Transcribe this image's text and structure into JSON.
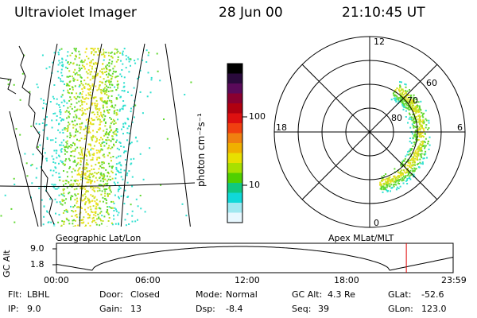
{
  "header": {
    "instrument": "Ultraviolet Imager",
    "date": "28 Jun 00",
    "time": "21:10:45 UT"
  },
  "colorbar": {
    "unit_label": "photon cm⁻²s⁻¹",
    "ticks": [
      "100",
      "10"
    ],
    "colors": [
      "#000000",
      "#2a0a3c",
      "#5a0a5a",
      "#8a0030",
      "#b00010",
      "#dd1010",
      "#f04010",
      "#f08010",
      "#f0b000",
      "#e8e000",
      "#a8e000",
      "#50d000",
      "#10c880",
      "#10d8d8",
      "#a0e8f0",
      "#e8f8ff"
    ]
  },
  "geo_map": {
    "label": "Geographic Lat/Lon",
    "aurora_colors": [
      "#30e0d0",
      "#60d830",
      "#c0e020",
      "#f0e020"
    ]
  },
  "polar_plot": {
    "label": "Apex MLat/MLT",
    "mlt_labels": [
      "12",
      "18",
      "6",
      "0"
    ],
    "lat_labels": [
      "60",
      "70",
      "80"
    ]
  },
  "altitude_plot": {
    "ylabel": "GC Alt",
    "y_ticks": [
      "9.0",
      "1.8"
    ],
    "x_ticks": [
      "00:00",
      "06:00",
      "12:00",
      "18:00",
      "23:59"
    ],
    "marker_color": "#e00000",
    "current_time_fraction": 0.882
  },
  "status": [
    {
      "label": "Flt:",
      "value": "LBHL"
    },
    {
      "label": "Door:",
      "value": "Closed"
    },
    {
      "label": "Mode:",
      "value": "Normal"
    },
    {
      "label": "GC Alt:",
      "value": "4.3 Re"
    },
    {
      "label": "GLat:",
      "value": "-52.6"
    },
    {
      "label": "IP:",
      "value": "9.0"
    },
    {
      "label": "Gain:",
      "value": "13"
    },
    {
      "label": "Dsp:",
      "value": "-8.4"
    },
    {
      "label": "Seq:",
      "value": "39"
    },
    {
      "label": "GLon:",
      "value": "123.0"
    }
  ]
}
